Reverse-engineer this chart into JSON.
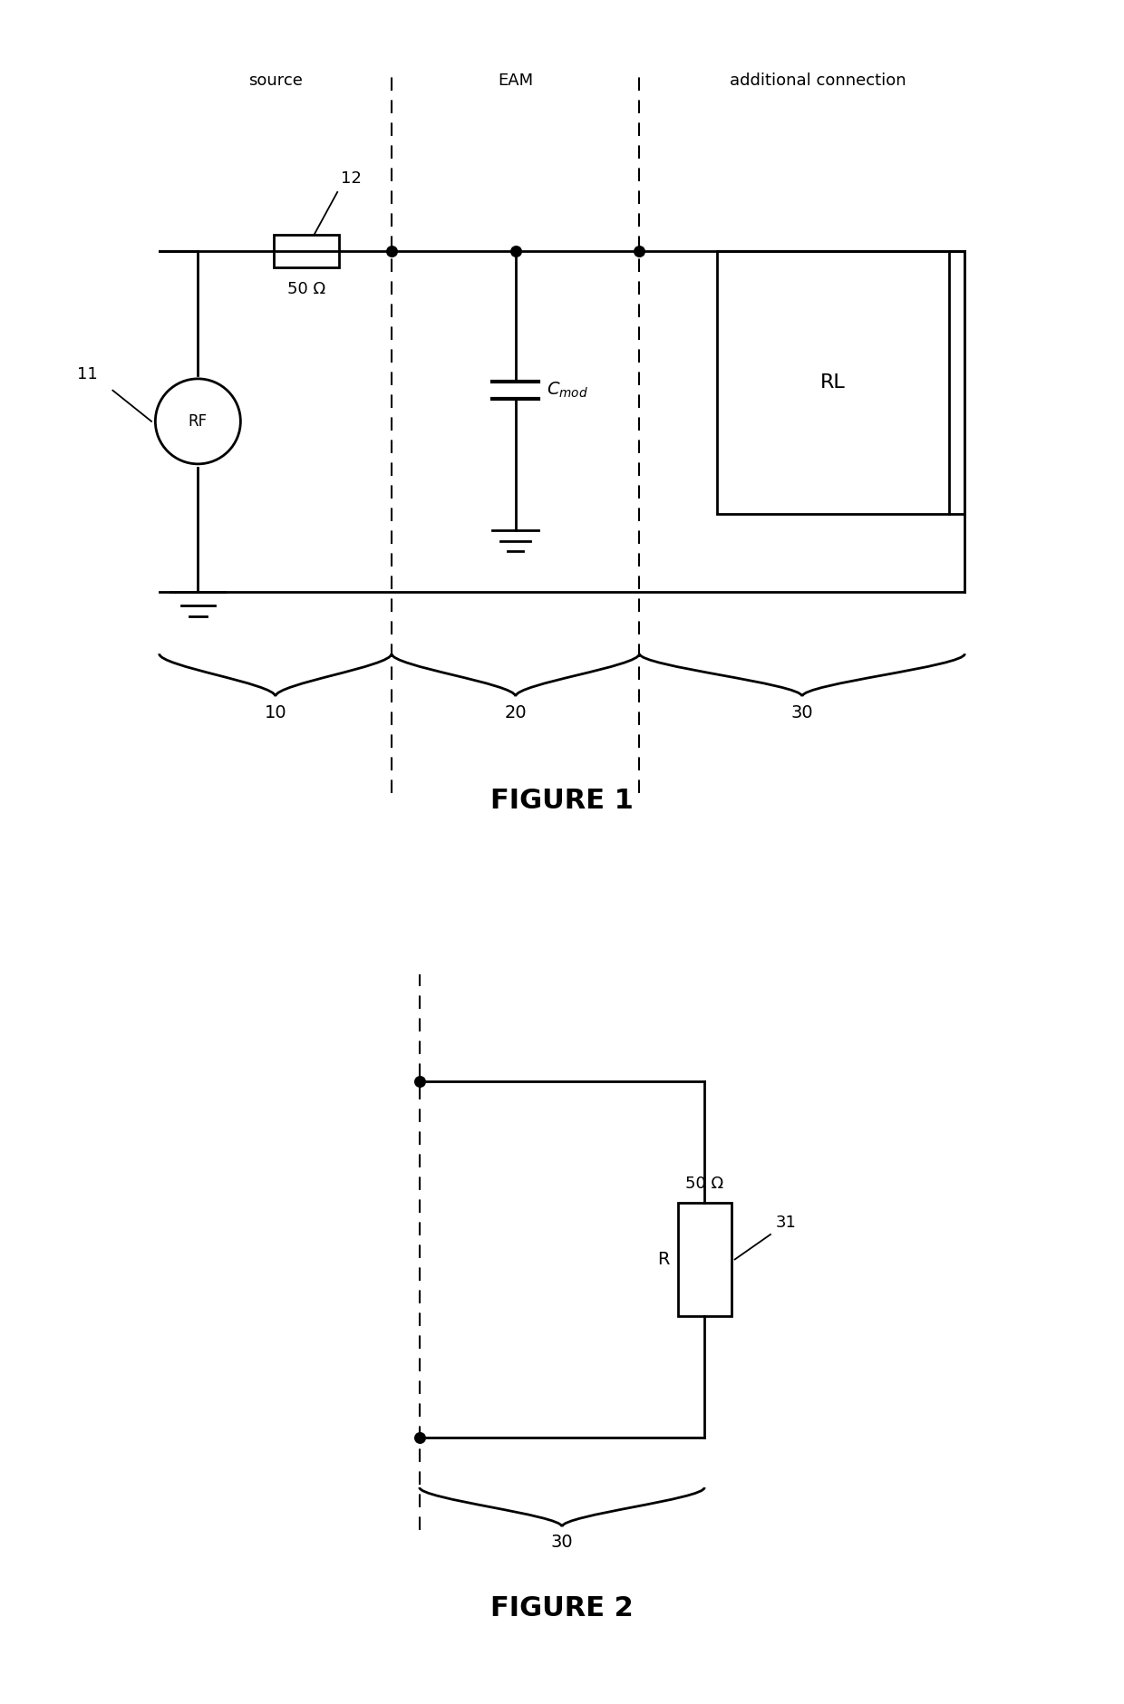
{
  "bg_color": "#ffffff",
  "line_color": "#000000",
  "fig1": {
    "title": "FIGURE 1",
    "source_label": "source",
    "eam_label": "EAM",
    "additional_label": "additional connection",
    "rf_num": "11",
    "res_num": "12",
    "res_val": "50 Ω",
    "rl_label": "RL",
    "num10": "10",
    "num20": "20",
    "num30": "30"
  },
  "fig2": {
    "title": "FIGURE 2",
    "res_val": "50 Ω",
    "r_label": "R",
    "ref_num": "31",
    "num30": "30"
  }
}
